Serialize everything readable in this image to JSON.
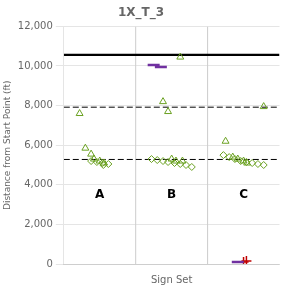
{
  "chart_data": {
    "type": "scatter",
    "title": "1X_T_3",
    "x_label": "Sign Set",
    "y_label": "Distance from Start Point (ft)",
    "xlim": [
      0.0,
      3.0
    ],
    "ylim": [
      0,
      12000
    ],
    "yticks": [
      0,
      2000,
      4000,
      6000,
      8000,
      10000,
      12000
    ],
    "tick_labels": "y",
    "grid": true,
    "series": [
      {
        "marker": "triangle",
        "color": "#6aa121",
        "x": [
          0.22,
          0.3,
          0.38,
          0.42,
          0.5,
          0.56
        ],
        "values": [
          7600,
          5850,
          5550,
          5300,
          5200,
          5100
        ]
      },
      {
        "marker": "triangle",
        "color": "#6aa121",
        "x": [
          1.38,
          1.45,
          1.62,
          1.5,
          1.56,
          1.65
        ],
        "values": [
          8200,
          7700,
          10450,
          5300,
          5200,
          5200
        ]
      },
      {
        "marker": "triangle",
        "color": "#6aa121",
        "x": [
          2.25,
          2.78,
          2.35,
          2.42,
          2.5,
          2.55
        ],
        "values": [
          6200,
          7950,
          5400,
          5300,
          5200,
          5100
        ]
      },
      {
        "marker": "diamond",
        "color": "#6aa121",
        "x": [
          0.38,
          0.46,
          0.54,
          0.62,
          0.55
        ],
        "values": [
          5200,
          5150,
          5100,
          5050,
          5000
        ]
      },
      {
        "marker": "diamond",
        "color": "#6aa121",
        "x": [
          1.22,
          1.3,
          1.38,
          1.45,
          1.54,
          1.62,
          1.7,
          1.78
        ],
        "values": [
          5300,
          5250,
          5200,
          5150,
          5100,
          5050,
          5000,
          4900
        ]
      },
      {
        "marker": "diamond",
        "color": "#6aa121",
        "x": [
          2.22,
          2.3,
          2.38,
          2.46,
          2.54,
          2.62,
          2.7,
          2.78
        ],
        "values": [
          5500,
          5400,
          5300,
          5200,
          5150,
          5100,
          5050,
          5000
        ]
      },
      {
        "marker": "dash",
        "color": "#7030a0",
        "x": [
          1.25,
          1.35
        ],
        "values": [
          10050,
          9950
        ]
      },
      {
        "marker": "dash",
        "color": "#7030a0",
        "x": [
          2.42
        ],
        "values": [
          100
        ]
      },
      {
        "marker": "plus",
        "color": "#c00000",
        "x": [
          2.5,
          2.54
        ],
        "values": [
          100,
          150
        ]
      }
    ],
    "reference_lines": [
      {
        "axis": "y",
        "value": 10560,
        "line_style": "solid",
        "color": "#000000"
      },
      {
        "axis": "y",
        "value": 7920,
        "line_style": "dashed",
        "color": "#000000"
      },
      {
        "axis": "y",
        "value": 5280,
        "line_style": "dashed",
        "color": "#000000"
      },
      {
        "axis": "x",
        "value": 1.0,
        "line_style": "solid",
        "color": "#cccccc"
      },
      {
        "axis": "x",
        "value": 2.0,
        "line_style": "solid",
        "color": "#cccccc"
      }
    ],
    "annotations": [
      {
        "text": "A",
        "x": 0.5,
        "y": 3500
      },
      {
        "text": "B",
        "x": 1.5,
        "y": 3500
      },
      {
        "text": "C",
        "x": 2.5,
        "y": 3500
      }
    ]
  }
}
